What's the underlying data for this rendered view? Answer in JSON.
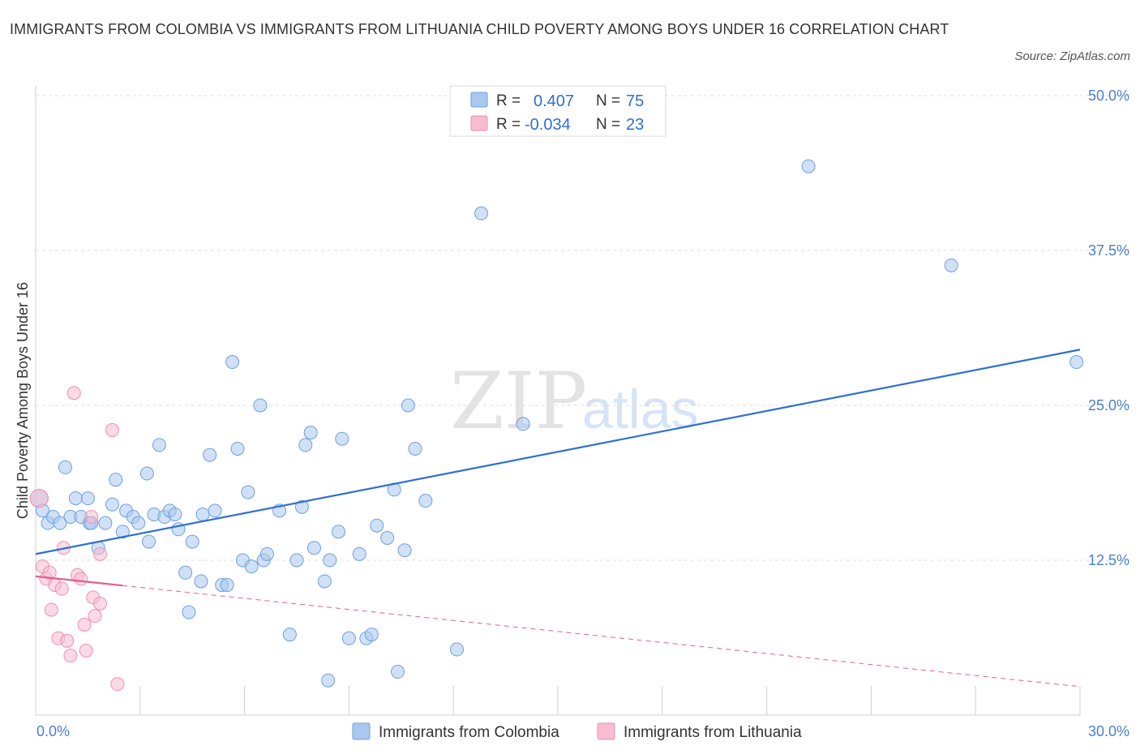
{
  "title": "IMMIGRANTS FROM COLOMBIA VS IMMIGRANTS FROM LITHUANIA CHILD POVERTY AMONG BOYS UNDER 16 CORRELATION CHART",
  "source": "Source: ZipAtlas.com",
  "watermark": {
    "zip": "ZIP",
    "atlas": "atlas"
  },
  "colors": {
    "colombia_fill": "#a9c8f0",
    "colombia_stroke": "#6f9fdc",
    "colombia_line": "#2f6fd0",
    "lithuania_fill": "#f7bcd0",
    "lithuania_stroke": "#ee8fae",
    "lithuania_line": "#e0608e",
    "tick_label": "#4a7fd1",
    "grid": "#dddddd"
  },
  "legend": {
    "rows": [
      {
        "r_label": "R =",
        "r_value": "0.407",
        "n_label": "N =",
        "n_value": "75"
      },
      {
        "r_label": "R =",
        "r_value": "-0.034",
        "n_label": "N =",
        "n_value": "23"
      }
    ]
  },
  "chart_data": {
    "type": "scatter",
    "xlabel": "",
    "ylabel": "Child Poverty Among Boys Under 16",
    "xlim": [
      0,
      30
    ],
    "ylim": [
      0,
      50
    ],
    "x_tick_labels": [
      "0.0%",
      "30.0%"
    ],
    "y_ticks": [
      12.5,
      25.0,
      37.5,
      50.0
    ],
    "y_tick_labels": [
      "12.5%",
      "25.0%",
      "37.5%",
      "50.0%"
    ],
    "grid": "horizontal dashed",
    "legend_position": "top-center",
    "series": [
      {
        "name": "Immigrants from Colombia",
        "R": 0.407,
        "N": 75,
        "trend": {
          "x": [
            0,
            30
          ],
          "y": [
            13.0,
            29.5
          ]
        },
        "points": [
          [
            0.1,
            17.5
          ],
          [
            0.2,
            16.5
          ],
          [
            0.35,
            15.5
          ],
          [
            0.5,
            16.0
          ],
          [
            0.7,
            15.5
          ],
          [
            0.85,
            20.0
          ],
          [
            1.0,
            16.0
          ],
          [
            1.15,
            17.5
          ],
          [
            1.3,
            16.0
          ],
          [
            1.5,
            17.5
          ],
          [
            1.55,
            15.5
          ],
          [
            1.6,
            15.5
          ],
          [
            1.8,
            13.5
          ],
          [
            2.0,
            15.5
          ],
          [
            2.2,
            17.0
          ],
          [
            2.3,
            19.0
          ],
          [
            2.5,
            14.8
          ],
          [
            2.6,
            16.5
          ],
          [
            2.8,
            16.0
          ],
          [
            2.95,
            15.5
          ],
          [
            3.2,
            19.5
          ],
          [
            3.25,
            14.0
          ],
          [
            3.4,
            16.2
          ],
          [
            3.55,
            21.8
          ],
          [
            3.7,
            16.0
          ],
          [
            3.85,
            16.5
          ],
          [
            4.0,
            16.2
          ],
          [
            4.1,
            15.0
          ],
          [
            4.3,
            11.5
          ],
          [
            4.4,
            8.3
          ],
          [
            4.5,
            14.0
          ],
          [
            4.75,
            10.8
          ],
          [
            4.8,
            16.2
          ],
          [
            5.0,
            21.0
          ],
          [
            5.15,
            16.5
          ],
          [
            5.35,
            10.5
          ],
          [
            5.5,
            10.5
          ],
          [
            5.65,
            28.5
          ],
          [
            5.8,
            21.5
          ],
          [
            5.95,
            12.5
          ],
          [
            6.1,
            18.0
          ],
          [
            6.2,
            12.0
          ],
          [
            6.45,
            25.0
          ],
          [
            6.55,
            12.5
          ],
          [
            6.65,
            13.0
          ],
          [
            7.0,
            16.5
          ],
          [
            7.3,
            6.5
          ],
          [
            7.5,
            12.5
          ],
          [
            7.65,
            16.8
          ],
          [
            7.75,
            21.8
          ],
          [
            7.9,
            22.8
          ],
          [
            8.0,
            13.5
          ],
          [
            8.3,
            10.8
          ],
          [
            8.4,
            2.8
          ],
          [
            8.45,
            12.5
          ],
          [
            8.7,
            14.8
          ],
          [
            8.8,
            22.3
          ],
          [
            9.0,
            6.2
          ],
          [
            9.3,
            13.0
          ],
          [
            9.5,
            6.2
          ],
          [
            9.65,
            6.5
          ],
          [
            9.8,
            15.3
          ],
          [
            10.1,
            14.3
          ],
          [
            10.3,
            18.2
          ],
          [
            10.4,
            3.5
          ],
          [
            10.6,
            13.3
          ],
          [
            10.7,
            25.0
          ],
          [
            10.9,
            21.5
          ],
          [
            11.2,
            17.3
          ],
          [
            12.1,
            5.3
          ],
          [
            12.8,
            40.5
          ],
          [
            14.0,
            23.5
          ],
          [
            22.2,
            44.3
          ],
          [
            26.3,
            36.3
          ],
          [
            29.9,
            28.5
          ]
        ]
      },
      {
        "name": "Immigrants from Lithuania",
        "R": -0.034,
        "N": 23,
        "trend": {
          "x": [
            0,
            30
          ],
          "y": [
            11.2,
            2.3
          ]
        },
        "trend_solid_until_x": 2.5,
        "points": [
          [
            0.1,
            17.5
          ],
          [
            0.2,
            12.0
          ],
          [
            0.3,
            11.0
          ],
          [
            0.4,
            11.5
          ],
          [
            0.45,
            8.5
          ],
          [
            0.55,
            10.5
          ],
          [
            0.65,
            6.2
          ],
          [
            0.75,
            10.2
          ],
          [
            0.8,
            13.5
          ],
          [
            0.9,
            6.0
          ],
          [
            1.0,
            4.8
          ],
          [
            1.1,
            26.0
          ],
          [
            1.2,
            11.3
          ],
          [
            1.3,
            11.0
          ],
          [
            1.4,
            7.3
          ],
          [
            1.45,
            5.2
          ],
          [
            1.6,
            16.0
          ],
          [
            1.65,
            9.5
          ],
          [
            1.7,
            8.0
          ],
          [
            1.85,
            9.0
          ],
          [
            1.85,
            13.0
          ],
          [
            2.2,
            23.0
          ],
          [
            2.35,
            2.5
          ]
        ]
      }
    ]
  }
}
